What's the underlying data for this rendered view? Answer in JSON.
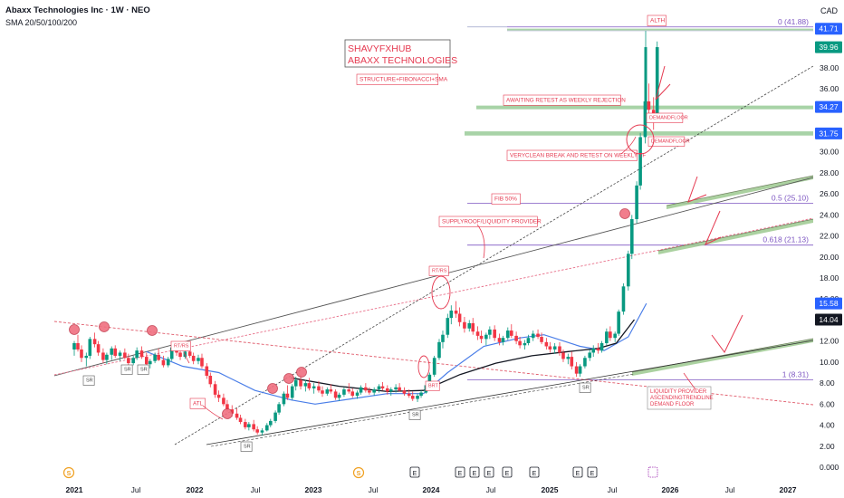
{
  "header": {
    "title": "Abaxx Technologies Inc · 1W · NEO",
    "indicator": "SMA 20/50/100/200"
  },
  "currency": "CAD",
  "chart_data": {
    "type": "candlestick",
    "y_ticks": [
      "38.00",
      "36.00",
      "34.00",
      "32.00",
      "30.00",
      "28.00",
      "26.00",
      "24.00",
      "22.00",
      "20.00",
      "18.00",
      "16.00",
      "14.00",
      "12.00",
      "10.00",
      "8.00",
      "6.00",
      "4.00",
      "2.00",
      "0.000"
    ],
    "y_tick_values": [
      38,
      36,
      34,
      32,
      30,
      28,
      26,
      24,
      22,
      20,
      18,
      16,
      14,
      12,
      10,
      8,
      6,
      4,
      2,
      0
    ],
    "x_ticks": [
      "2021",
      "Jul",
      "2022",
      "Jul",
      "2023",
      "Jul",
      "2024",
      "Jul",
      "2025",
      "Jul",
      "2026",
      "Jul",
      "2027"
    ],
    "x_tick_bold": [
      true,
      false,
      true,
      false,
      true,
      false,
      true,
      false,
      true,
      false,
      true,
      false,
      true
    ],
    "price_labels": [
      {
        "text": "41.71",
        "value": 41.71,
        "color": "#2962ff"
      },
      {
        "text": "39.96",
        "value": 39.96,
        "color": "#089981"
      },
      {
        "text": "34.27",
        "value": 34.27,
        "color": "#2962ff"
      },
      {
        "text": "31.75",
        "value": 31.75,
        "color": "#2962ff"
      },
      {
        "text": "15.58",
        "value": 15.58,
        "color": "#2962ff"
      },
      {
        "text": "14.04",
        "value": 14.04,
        "color": "#131722"
      }
    ],
    "fib_levels": [
      {
        "label": "0 (41.88)",
        "value": 41.88
      },
      {
        "label": "0.5 (25.10)",
        "value": 25.1
      },
      {
        "label": "0.618 (21.13)",
        "value": 21.13
      },
      {
        "label": "1 (8.31)",
        "value": 8.31
      }
    ],
    "events": [
      "S",
      "S",
      "E",
      "E",
      "E",
      "E",
      "E",
      "E",
      "E",
      "E"
    ],
    "sma_blue": [
      [
        2021.6,
        11.0
      ],
      [
        2021.9,
        9.6
      ],
      [
        2022.2,
        9.0
      ],
      [
        2022.5,
        7.3
      ],
      [
        2022.8,
        6.4
      ],
      [
        2023.0,
        6.0
      ],
      [
        2023.3,
        6.5
      ],
      [
        2023.6,
        7.0
      ],
      [
        2023.9,
        7.0
      ],
      [
        2024.1,
        9.0
      ],
      [
        2024.4,
        11.5
      ],
      [
        2024.7,
        12.3
      ],
      [
        2024.9,
        12.6
      ],
      [
        2025.2,
        11.5
      ],
      [
        2025.4,
        11.1
      ],
      [
        2025.6,
        12.4
      ],
      [
        2025.75,
        15.58
      ]
    ],
    "sma_black": [
      [
        2022.8,
        8.5
      ],
      [
        2023.2,
        7.7
      ],
      [
        2023.6,
        7.2
      ],
      [
        2023.9,
        7.3
      ],
      [
        2024.2,
        8.8
      ],
      [
        2024.5,
        9.9
      ],
      [
        2024.8,
        10.6
      ],
      [
        2025.1,
        11.0
      ],
      [
        2025.35,
        11.3
      ],
      [
        2025.5,
        11.8
      ],
      [
        2025.65,
        14.04
      ]
    ],
    "candles": [
      [
        2021.0,
        11.2,
        12.0,
        10.6,
        11.8
      ],
      [
        2021.03,
        11.8,
        12.6,
        11.0,
        11.2
      ],
      [
        2021.06,
        11.2,
        11.6,
        10.0,
        10.4
      ],
      [
        2021.1,
        10.4,
        10.9,
        9.6,
        10.6
      ],
      [
        2021.13,
        10.6,
        12.4,
        10.3,
        12.2
      ],
      [
        2021.17,
        12.2,
        12.8,
        11.4,
        11.7
      ],
      [
        2021.2,
        11.7,
        12.0,
        10.6,
        10.9
      ],
      [
        2021.24,
        10.9,
        11.3,
        9.9,
        10.2
      ],
      [
        2021.27,
        10.2,
        10.9,
        9.8,
        10.7
      ],
      [
        2021.31,
        10.7,
        11.5,
        10.2,
        11.3
      ],
      [
        2021.34,
        11.3,
        11.6,
        10.4,
        10.6
      ],
      [
        2021.38,
        10.6,
        11.1,
        10.1,
        10.9
      ],
      [
        2021.42,
        10.9,
        11.3,
        10.3,
        10.4
      ],
      [
        2021.45,
        10.4,
        10.8,
        9.7,
        9.9
      ],
      [
        2021.49,
        9.9,
        10.6,
        9.7,
        10.4
      ],
      [
        2021.52,
        10.4,
        11.4,
        10.2,
        11.1
      ],
      [
        2021.56,
        11.1,
        11.5,
        10.3,
        10.5
      ],
      [
        2021.6,
        10.5,
        10.9,
        9.6,
        9.8
      ],
      [
        2021.63,
        9.8,
        10.3,
        9.4,
        10.1
      ],
      [
        2021.67,
        10.1,
        10.9,
        9.9,
        10.7
      ],
      [
        2021.7,
        10.7,
        11.3,
        10.1,
        10.2
      ],
      [
        2021.74,
        10.2,
        10.6,
        9.5,
        9.7
      ],
      [
        2021.78,
        9.7,
        10.5,
        9.5,
        10.3
      ],
      [
        2021.81,
        10.3,
        11.6,
        10.1,
        11.4
      ],
      [
        2021.85,
        11.4,
        11.8,
        10.6,
        10.9
      ],
      [
        2021.88,
        10.9,
        11.2,
        10.2,
        10.5
      ],
      [
        2021.92,
        10.5,
        11.3,
        10.3,
        11.0
      ],
      [
        2021.96,
        11.0,
        11.4,
        10.4,
        10.6
      ],
      [
        2021.99,
        10.6,
        10.9,
        9.8,
        10.1
      ],
      [
        2022.03,
        10.1,
        10.7,
        9.8,
        10.4
      ],
      [
        2022.06,
        10.4,
        10.8,
        9.4,
        9.6
      ],
      [
        2022.1,
        9.6,
        9.9,
        8.4,
        8.7
      ],
      [
        2022.13,
        8.7,
        9.0,
        7.6,
        7.9
      ],
      [
        2022.17,
        7.9,
        8.2,
        6.6,
        6.9
      ],
      [
        2022.2,
        6.9,
        7.3,
        6.2,
        6.6
      ],
      [
        2022.24,
        6.6,
        7.0,
        5.8,
        6.0
      ],
      [
        2022.27,
        6.0,
        6.4,
        5.3,
        5.5
      ],
      [
        2022.31,
        5.5,
        5.9,
        4.8,
        5.1
      ],
      [
        2022.35,
        5.1,
        5.6,
        4.5,
        4.7
      ],
      [
        2022.38,
        4.7,
        5.0,
        4.1,
        4.3
      ],
      [
        2022.42,
        4.3,
        4.6,
        3.6,
        3.8
      ],
      [
        2022.45,
        3.8,
        4.3,
        3.5,
        4.1
      ],
      [
        2022.49,
        4.1,
        4.5,
        3.4,
        3.6
      ],
      [
        2022.52,
        3.6,
        3.9,
        3.1,
        3.3
      ],
      [
        2022.56,
        3.3,
        3.7,
        3.0,
        3.5
      ],
      [
        2022.6,
        3.5,
        4.2,
        3.4,
        4.0
      ],
      [
        2022.63,
        4.0,
        4.6,
        3.8,
        4.4
      ],
      [
        2022.67,
        4.4,
        5.4,
        4.2,
        5.2
      ],
      [
        2022.7,
        5.2,
        6.2,
        5.0,
        6.0
      ],
      [
        2022.74,
        6.0,
        7.2,
        5.8,
        7.0
      ],
      [
        2022.77,
        7.0,
        7.8,
        6.4,
        6.6
      ],
      [
        2022.81,
        6.6,
        7.9,
        6.4,
        7.7
      ],
      [
        2022.84,
        7.7,
        8.6,
        7.3,
        8.3
      ],
      [
        2022.88,
        8.3,
        8.8,
        7.4,
        7.7
      ],
      [
        2022.92,
        7.7,
        8.3,
        7.2,
        8.0
      ],
      [
        2022.95,
        8.0,
        8.5,
        7.3,
        7.5
      ],
      [
        2022.99,
        7.5,
        8.0,
        7.0,
        7.7
      ],
      [
        2023.03,
        7.7,
        8.2,
        7.1,
        7.3
      ],
      [
        2023.06,
        7.3,
        7.7,
        6.7,
        7.0
      ],
      [
        2023.1,
        7.0,
        7.6,
        6.8,
        7.4
      ],
      [
        2023.13,
        7.4,
        7.9,
        7.0,
        7.2
      ],
      [
        2023.17,
        7.2,
        7.4,
        6.4,
        6.6
      ],
      [
        2023.2,
        6.6,
        7.1,
        6.3,
        6.9
      ],
      [
        2023.24,
        6.9,
        7.6,
        6.7,
        7.4
      ],
      [
        2023.28,
        7.4,
        8.0,
        7.0,
        7.2
      ],
      [
        2023.31,
        7.2,
        7.5,
        6.6,
        6.8
      ],
      [
        2023.35,
        6.8,
        7.3,
        6.5,
        7.1
      ],
      [
        2023.38,
        7.1,
        7.8,
        6.9,
        7.6
      ],
      [
        2023.42,
        7.6,
        8.0,
        7.1,
        7.3
      ],
      [
        2023.45,
        7.3,
        7.6,
        6.9,
        7.1
      ],
      [
        2023.49,
        7.1,
        7.6,
        6.8,
        7.4
      ],
      [
        2023.53,
        7.4,
        7.9,
        7.1,
        7.7
      ],
      [
        2023.56,
        7.7,
        8.1,
        7.3,
        7.5
      ],
      [
        2023.6,
        7.5,
        7.8,
        6.9,
        7.2
      ],
      [
        2023.63,
        7.2,
        7.6,
        6.8,
        7.4
      ],
      [
        2023.67,
        7.4,
        7.9,
        7.1,
        7.6
      ],
      [
        2023.7,
        7.6,
        8.0,
        7.2,
        7.3
      ],
      [
        2023.74,
        7.3,
        7.6,
        6.8,
        7.0
      ],
      [
        2023.78,
        7.0,
        7.4,
        6.6,
        6.8
      ],
      [
        2023.81,
        6.8,
        7.2,
        6.3,
        6.5
      ],
      [
        2023.85,
        6.5,
        7.0,
        6.2,
        6.8
      ],
      [
        2023.88,
        6.8,
        7.3,
        6.6,
        7.1
      ],
      [
        2023.92,
        7.1,
        8.0,
        7.0,
        7.8
      ],
      [
        2023.95,
        7.8,
        9.0,
        7.6,
        8.8
      ],
      [
        2023.99,
        8.8,
        10.6,
        8.6,
        10.4
      ],
      [
        2024.03,
        10.4,
        12.2,
        10.2,
        11.9
      ],
      [
        2024.06,
        11.9,
        13.0,
        11.3,
        12.6
      ],
      [
        2024.1,
        12.6,
        14.6,
        12.3,
        14.2
      ],
      [
        2024.13,
        14.2,
        15.4,
        13.6,
        14.9
      ],
      [
        2024.17,
        14.9,
        15.8,
        14.2,
        14.6
      ],
      [
        2024.2,
        14.6,
        15.2,
        13.4,
        13.8
      ],
      [
        2024.24,
        13.8,
        14.3,
        12.8,
        13.2
      ],
      [
        2024.28,
        13.2,
        14.0,
        12.9,
        13.7
      ],
      [
        2024.31,
        13.7,
        14.2,
        12.6,
        12.9
      ],
      [
        2024.35,
        12.9,
        13.4,
        12.1,
        12.5
      ],
      [
        2024.38,
        12.5,
        13.0,
        11.8,
        12.2
      ],
      [
        2024.42,
        12.2,
        12.8,
        11.6,
        12.6
      ],
      [
        2024.45,
        12.6,
        13.4,
        12.2,
        13.1
      ],
      [
        2024.49,
        13.1,
        13.5,
        12.0,
        12.3
      ],
      [
        2024.53,
        12.3,
        12.7,
        11.6,
        11.9
      ],
      [
        2024.56,
        11.9,
        12.5,
        11.6,
        12.3
      ],
      [
        2024.6,
        12.3,
        13.3,
        12.1,
        13.0
      ],
      [
        2024.63,
        13.0,
        13.6,
        12.3,
        12.5
      ],
      [
        2024.67,
        12.5,
        12.9,
        11.7,
        12.0
      ],
      [
        2024.7,
        12.0,
        12.4,
        11.3,
        11.6
      ],
      [
        2024.74,
        11.6,
        12.1,
        11.2,
        11.8
      ],
      [
        2024.77,
        11.8,
        12.6,
        11.6,
        12.3
      ],
      [
        2024.81,
        12.3,
        13.0,
        12.0,
        12.7
      ],
      [
        2024.85,
        12.7,
        13.1,
        12.2,
        12.4
      ],
      [
        2024.88,
        12.4,
        12.8,
        11.7,
        11.9
      ],
      [
        2024.92,
        11.9,
        12.3,
        11.2,
        11.5
      ],
      [
        2024.95,
        11.5,
        11.9,
        10.9,
        11.2
      ],
      [
        2024.99,
        11.2,
        11.8,
        10.8,
        11.5
      ],
      [
        2025.03,
        11.5,
        11.9,
        10.6,
        10.9
      ],
      [
        2025.06,
        10.9,
        11.2,
        10.0,
        10.3
      ],
      [
        2025.1,
        10.3,
        10.8,
        9.8,
        10.5
      ],
      [
        2025.13,
        10.5,
        11.0,
        9.3,
        9.6
      ],
      [
        2025.17,
        9.6,
        10.0,
        8.6,
        8.9
      ],
      [
        2025.2,
        8.9,
        9.8,
        8.6,
        9.6
      ],
      [
        2025.24,
        9.6,
        10.6,
        9.4,
        10.4
      ],
      [
        2025.28,
        10.4,
        11.2,
        10.1,
        10.9
      ],
      [
        2025.31,
        10.9,
        11.6,
        10.5,
        11.3
      ],
      [
        2025.35,
        11.3,
        11.8,
        10.8,
        11.1
      ],
      [
        2025.38,
        11.1,
        12.0,
        10.9,
        11.8
      ],
      [
        2025.42,
        11.8,
        13.2,
        11.6,
        12.9
      ],
      [
        2025.45,
        12.9,
        13.4,
        12.0,
        12.3
      ],
      [
        2025.49,
        12.3,
        12.9,
        11.9,
        12.7
      ],
      [
        2025.52,
        12.7,
        15.0,
        12.5,
        14.8
      ],
      [
        2025.56,
        14.8,
        17.5,
        14.5,
        17.2
      ],
      [
        2025.6,
        17.2,
        20.6,
        16.8,
        20.3
      ],
      [
        2025.63,
        20.3,
        24.0,
        19.8,
        23.6
      ],
      [
        2025.67,
        23.6,
        27.2,
        23.2,
        26.8
      ],
      [
        2025.7,
        26.8,
        31.8,
        26.4,
        31.4
      ],
      [
        2025.74,
        31.4,
        35.8,
        30.8,
        34.8
      ],
      [
        2025.77,
        34.8,
        36.5,
        33.2,
        34.0
      ],
      [
        2025.81,
        34.0,
        35.2,
        32.1,
        33.5
      ],
      [
        2025.84,
        33.5,
        40.5,
        33.2,
        39.96
      ]
    ]
  },
  "annotations": {
    "title_box_line1": "SHAVYFXHUB",
    "title_box_line2": "ABAXX TECHNOLOGIES",
    "subtitle_box": "STRUCTURE+FIBONACCI+SMA",
    "awaiting": "AWAITING RETEST AS WEEKLY REJECTION",
    "demand_floor_1": "DEMANDFLOOR",
    "demand_floor_2": "DEMANDFLOOR",
    "very_clean": "VERYCLEAN BREAK AND RETEST ON WEEKLY TF",
    "fib50": "FIB 50%",
    "supply_roof": "SUPPLYROOF/LIQUIDITY PROVIDER",
    "ath": "ALTH",
    "rt_rs_1": "RT/RS",
    "rt_rs_2": "RT/RS",
    "atl": "ATL",
    "brt": "BRT",
    "sr_label": "SR",
    "liquidity_1": "LIQUIDITY PROVIDER",
    "liquidity_2": "ASCENDINGTRENDLINE",
    "liquidity_3": "DEMAND FLOOR"
  },
  "colors": {
    "up": "#089981",
    "down": "#f23645",
    "sma_blue": "#4a7ee8",
    "sma_black": "#131722",
    "fib": "#7e57c2",
    "annotation": "#e53950",
    "zone": "#8bc48a"
  }
}
